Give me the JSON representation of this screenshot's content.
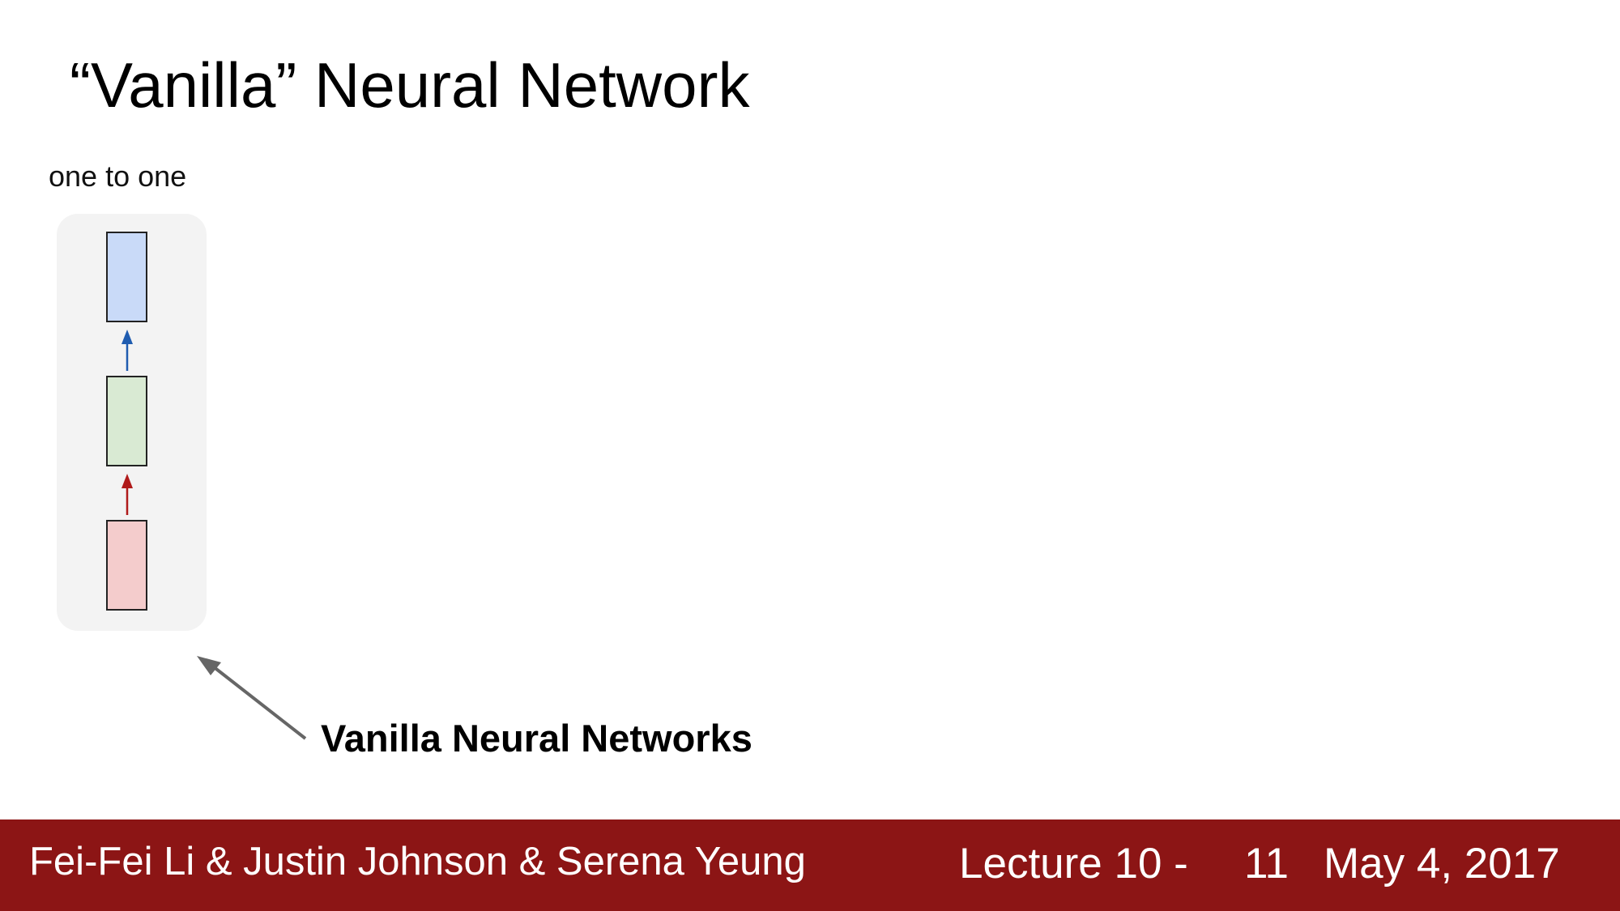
{
  "slide": {
    "title": "“Vanilla” Neural Network",
    "diagram_label": "one to one",
    "annotation": "Vanilla Neural Networks"
  },
  "diagram": {
    "boxes": [
      {
        "role": "output",
        "fill": "#c9daf8"
      },
      {
        "role": "hidden",
        "fill": "#d9ead3"
      },
      {
        "role": "input",
        "fill": "#f4cccc"
      }
    ],
    "arrow_colors": {
      "hidden_to_output": "#1f5cb0",
      "input_to_hidden": "#b01a1a",
      "pointer": "#666666"
    }
  },
  "footer": {
    "authors": "Fei-Fei Li & Justin Johnson & Serena Yeung",
    "lecture": "Lecture 10 -",
    "page": "11",
    "date": "May 4, 2017",
    "background": "#8c1515"
  }
}
